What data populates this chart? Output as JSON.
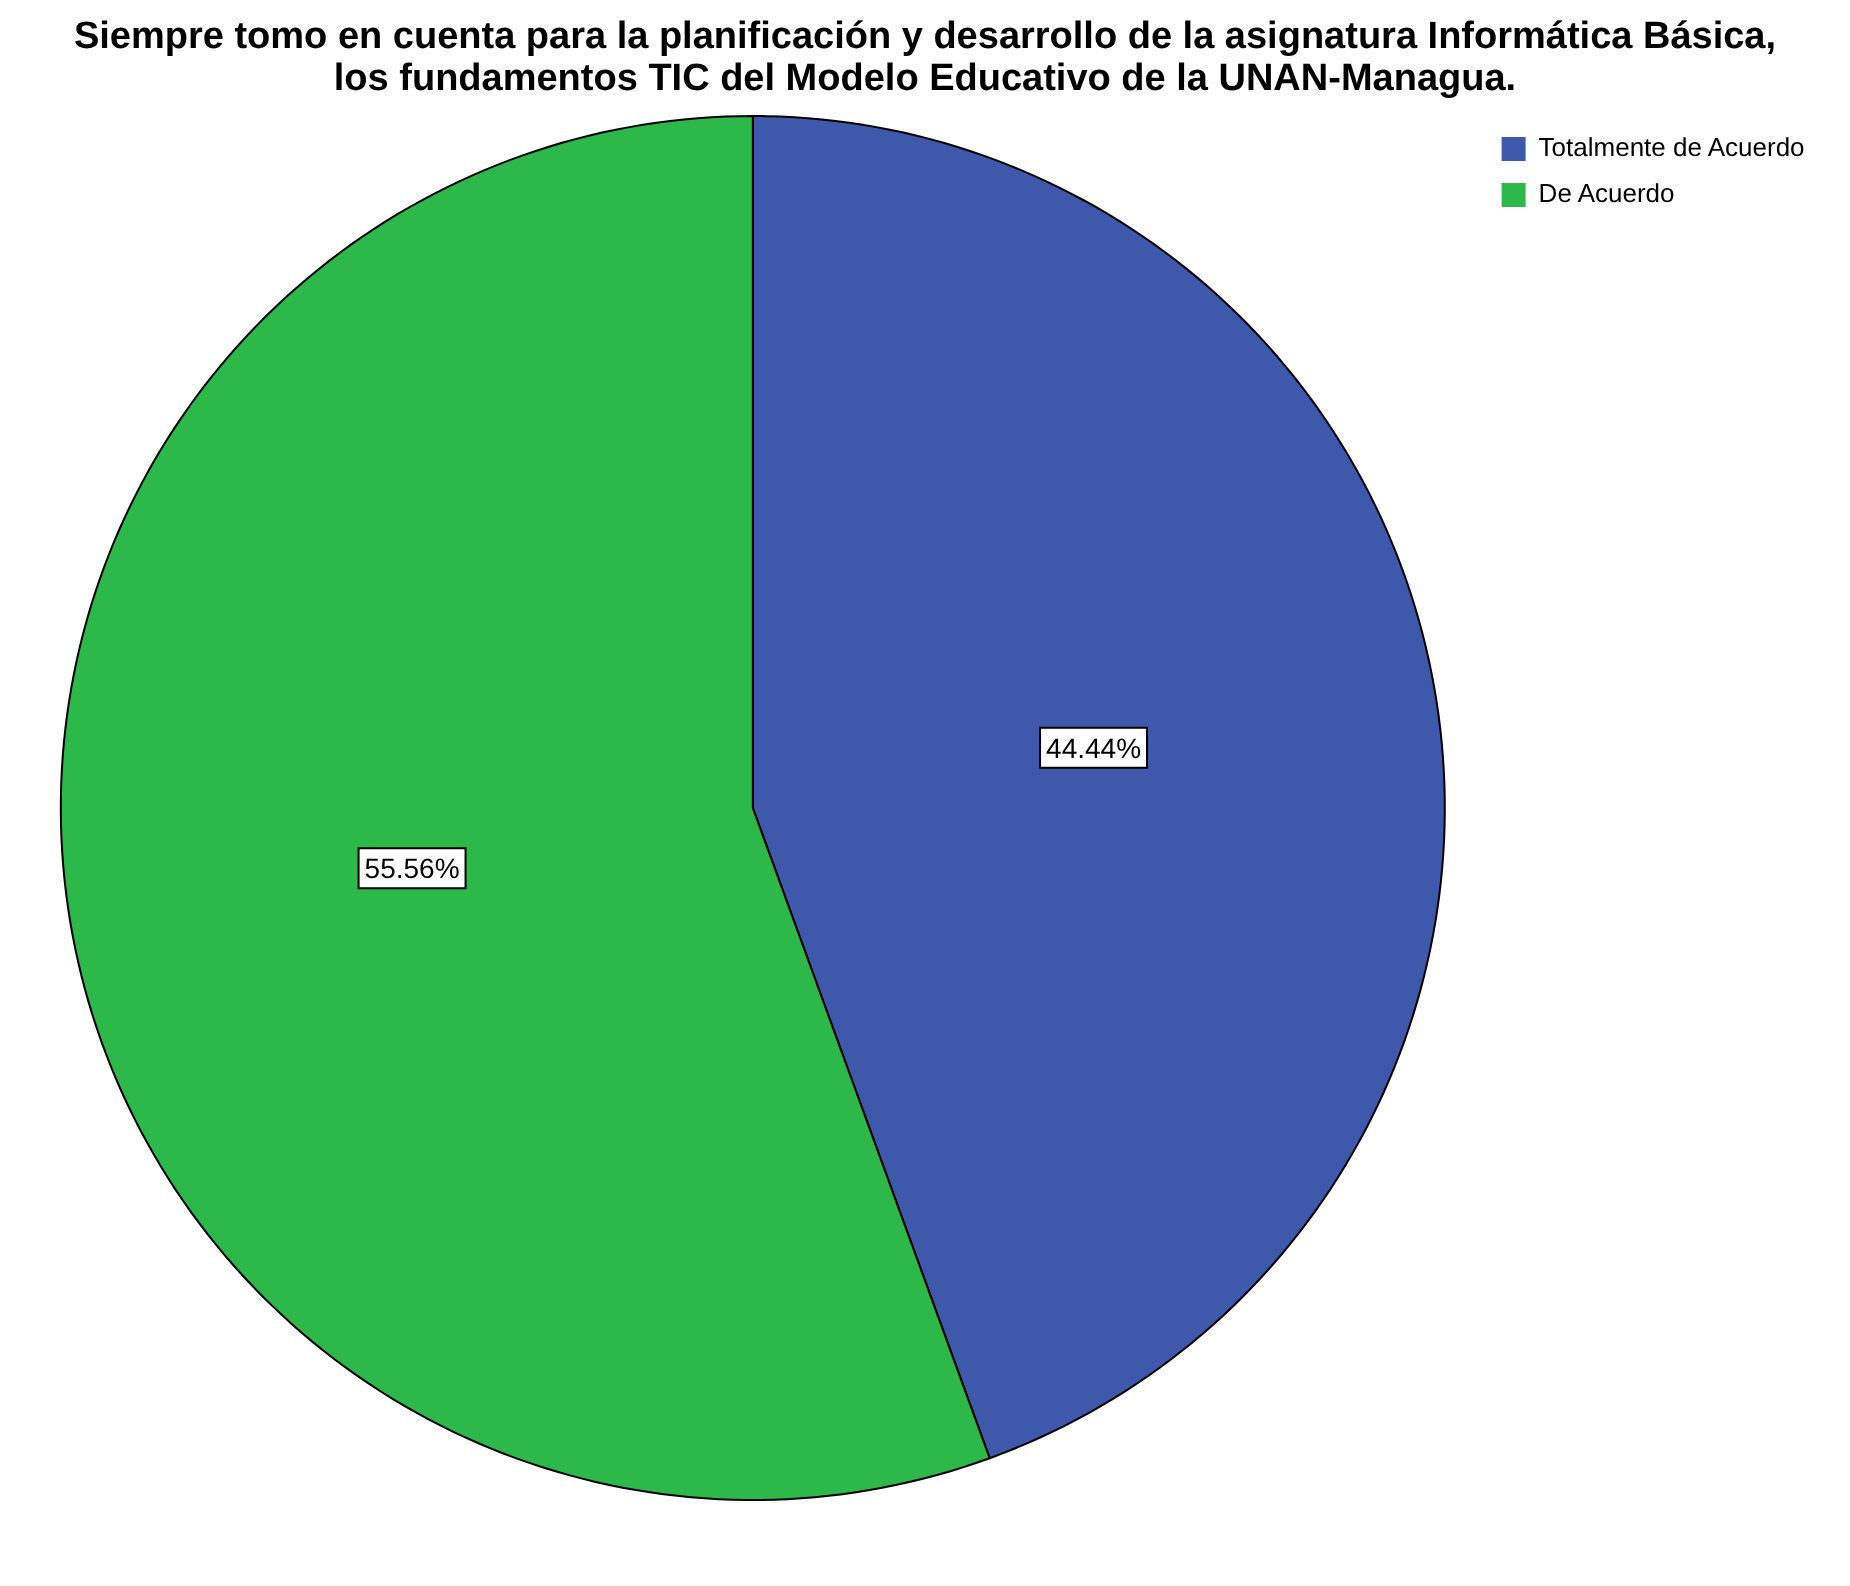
{
  "chart_data": {
    "type": "pie",
    "title": "Siempre tomo en cuenta para la planificación y desarrollo de la asignatura Informática Básica, los fundamentos TIC del Modelo Educativo de la UNAN-Managua.",
    "categories": [
      "Totalmente de Acuerdo",
      "De Acuerdo"
    ],
    "values": [
      44.44,
      55.56
    ],
    "colors": [
      "#3e58ac",
      "#2db84a"
    ],
    "value_labels": [
      "44.44%",
      "55.56%"
    ],
    "legend": "top right"
  }
}
